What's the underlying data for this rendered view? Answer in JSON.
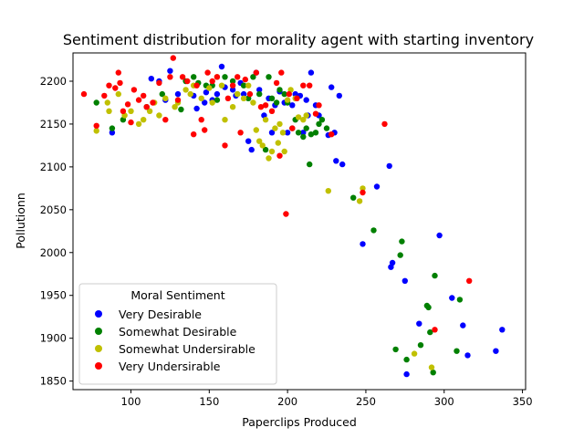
{
  "chart_data": {
    "type": "scatter",
    "title": "Sentiment distribution for morality agent with starting inventory",
    "xlabel": "Paperclips Produced",
    "ylabel": "Pollutionn",
    "xlim": [
      63,
      352
    ],
    "ylim": [
      1840,
      2233
    ],
    "xticks": [
      100,
      150,
      200,
      250,
      300,
      350
    ],
    "yticks": [
      1850,
      1900,
      1950,
      2000,
      2050,
      2100,
      2150,
      2200
    ],
    "grid": false,
    "legend": {
      "title": "Moral Sentiment",
      "placement": "lower-left"
    },
    "series": [
      {
        "name": "Very Desirable",
        "color": "#0000ff",
        "points": [
          [
            88,
            2140
          ],
          [
            113,
            2203
          ],
          [
            118,
            2200
          ],
          [
            122,
            2178
          ],
          [
            125,
            2212
          ],
          [
            130,
            2185
          ],
          [
            140,
            2183
          ],
          [
            142,
            2168
          ],
          [
            147,
            2175
          ],
          [
            148,
            2187
          ],
          [
            152,
            2178
          ],
          [
            155,
            2185
          ],
          [
            158,
            2217
          ],
          [
            160,
            2193
          ],
          [
            165,
            2190
          ],
          [
            167,
            2183
          ],
          [
            170,
            2198
          ],
          [
            172,
            2185
          ],
          [
            175,
            2130
          ],
          [
            177,
            2120
          ],
          [
            180,
            2210
          ],
          [
            182,
            2190
          ],
          [
            185,
            2160
          ],
          [
            188,
            2180
          ],
          [
            190,
            2140
          ],
          [
            192,
            2172
          ],
          [
            195,
            2188
          ],
          [
            198,
            2175
          ],
          [
            200,
            2140
          ],
          [
            203,
            2172
          ],
          [
            205,
            2185
          ],
          [
            208,
            2183
          ],
          [
            210,
            2140
          ],
          [
            212,
            2178
          ],
          [
            213,
            2160
          ],
          [
            215,
            2210
          ],
          [
            218,
            2172
          ],
          [
            220,
            2160
          ],
          [
            226,
            2137
          ],
          [
            228,
            2193
          ],
          [
            230,
            2140
          ],
          [
            231,
            2107
          ],
          [
            233,
            2183
          ],
          [
            235,
            2103
          ],
          [
            248,
            2010
          ],
          [
            257,
            2077
          ],
          [
            265,
            2101
          ],
          [
            266,
            1983
          ],
          [
            267,
            1988
          ],
          [
            275,
            1967
          ],
          [
            276,
            1858
          ],
          [
            284,
            1917
          ],
          [
            297,
            2020
          ],
          [
            305,
            1947
          ],
          [
            312,
            1915
          ],
          [
            315,
            1880
          ],
          [
            333,
            1885
          ],
          [
            337,
            1910
          ]
        ]
      },
      {
        "name": "Somewhat Desirable",
        "color": "#008000",
        "points": [
          [
            78,
            2175
          ],
          [
            88,
            2145
          ],
          [
            95,
            2155
          ],
          [
            110,
            2170
          ],
          [
            120,
            2185
          ],
          [
            132,
            2167
          ],
          [
            135,
            2200
          ],
          [
            140,
            2205
          ],
          [
            143,
            2198
          ],
          [
            148,
            2195
          ],
          [
            152,
            2195
          ],
          [
            155,
            2178
          ],
          [
            160,
            2205
          ],
          [
            165,
            2200
          ],
          [
            168,
            2185
          ],
          [
            172,
            2195
          ],
          [
            175,
            2180
          ],
          [
            178,
            2205
          ],
          [
            182,
            2185
          ],
          [
            186,
            2120
          ],
          [
            188,
            2205
          ],
          [
            190,
            2180
          ],
          [
            193,
            2175
          ],
          [
            195,
            2190
          ],
          [
            198,
            2185
          ],
          [
            200,
            2175
          ],
          [
            203,
            2145
          ],
          [
            205,
            2155
          ],
          [
            207,
            2140
          ],
          [
            210,
            2135
          ],
          [
            212,
            2145
          ],
          [
            214,
            2103
          ],
          [
            215,
            2138
          ],
          [
            218,
            2140
          ],
          [
            220,
            2150
          ],
          [
            222,
            2155
          ],
          [
            225,
            2145
          ],
          [
            242,
            2064
          ],
          [
            255,
            2026
          ],
          [
            269,
            1887
          ],
          [
            272,
            1997
          ],
          [
            273,
            2013
          ],
          [
            276,
            1875
          ],
          [
            285,
            1892
          ],
          [
            289,
            1938
          ],
          [
            290,
            1936
          ],
          [
            291,
            1907
          ],
          [
            293,
            1860
          ],
          [
            294,
            1973
          ],
          [
            308,
            1885
          ],
          [
            310,
            1945
          ]
        ]
      },
      {
        "name": "Somewhat Undersirable",
        "color": "#c0c000",
        "points": [
          [
            78,
            2142
          ],
          [
            85,
            2175
          ],
          [
            86,
            2165
          ],
          [
            92,
            2185
          ],
          [
            96,
            2160
          ],
          [
            100,
            2165
          ],
          [
            105,
            2150
          ],
          [
            108,
            2155
          ],
          [
            112,
            2165
          ],
          [
            115,
            2175
          ],
          [
            118,
            2160
          ],
          [
            122,
            2180
          ],
          [
            128,
            2170
          ],
          [
            130,
            2175
          ],
          [
            135,
            2190
          ],
          [
            138,
            2185
          ],
          [
            140,
            2195
          ],
          [
            145,
            2180
          ],
          [
            150,
            2192
          ],
          [
            152,
            2175
          ],
          [
            155,
            2205
          ],
          [
            158,
            2195
          ],
          [
            160,
            2155
          ],
          [
            165,
            2170
          ],
          [
            168,
            2185
          ],
          [
            172,
            2180
          ],
          [
            175,
            2195
          ],
          [
            178,
            2175
          ],
          [
            180,
            2143
          ],
          [
            182,
            2130
          ],
          [
            184,
            2125
          ],
          [
            186,
            2155
          ],
          [
            188,
            2110
          ],
          [
            190,
            2118
          ],
          [
            192,
            2145
          ],
          [
            194,
            2128
          ],
          [
            195,
            2150
          ],
          [
            197,
            2140
          ],
          [
            198,
            2118
          ],
          [
            200,
            2178
          ],
          [
            202,
            2190
          ],
          [
            205,
            2180
          ],
          [
            207,
            2158
          ],
          [
            210,
            2155
          ],
          [
            212,
            2160
          ],
          [
            226,
            2072
          ],
          [
            246,
            2060
          ],
          [
            248,
            2075
          ],
          [
            281,
            1882
          ],
          [
            292,
            1866
          ]
        ]
      },
      {
        "name": "Very Undersirable",
        "color": "#ff0000",
        "points": [
          [
            70,
            2185
          ],
          [
            78,
            2148
          ],
          [
            83,
            2183
          ],
          [
            86,
            2195
          ],
          [
            90,
            2192
          ],
          [
            92,
            2210
          ],
          [
            93,
            2198
          ],
          [
            95,
            2165
          ],
          [
            98,
            2173
          ],
          [
            100,
            2152
          ],
          [
            102,
            2190
          ],
          [
            105,
            2178
          ],
          [
            108,
            2183
          ],
          [
            110,
            2170
          ],
          [
            114,
            2175
          ],
          [
            118,
            2198
          ],
          [
            122,
            2155
          ],
          [
            125,
            2205
          ],
          [
            127,
            2227
          ],
          [
            130,
            2178
          ],
          [
            133,
            2205
          ],
          [
            136,
            2200
          ],
          [
            140,
            2138
          ],
          [
            142,
            2195
          ],
          [
            145,
            2155
          ],
          [
            147,
            2143
          ],
          [
            149,
            2210
          ],
          [
            152,
            2200
          ],
          [
            155,
            2205
          ],
          [
            160,
            2125
          ],
          [
            162,
            2180
          ],
          [
            165,
            2195
          ],
          [
            168,
            2205
          ],
          [
            170,
            2140
          ],
          [
            173,
            2202
          ],
          [
            176,
            2185
          ],
          [
            180,
            2210
          ],
          [
            183,
            2170
          ],
          [
            186,
            2172
          ],
          [
            190,
            2165
          ],
          [
            193,
            2198
          ],
          [
            195,
            2113
          ],
          [
            196,
            2210
          ],
          [
            199,
            2045
          ],
          [
            201,
            2185
          ],
          [
            203,
            2145
          ],
          [
            206,
            2180
          ],
          [
            210,
            2195
          ],
          [
            214,
            2195
          ],
          [
            218,
            2162
          ],
          [
            220,
            2172
          ],
          [
            228,
            2138
          ],
          [
            248,
            2070
          ],
          [
            262,
            2150
          ],
          [
            294,
            1910
          ],
          [
            316,
            1967
          ]
        ]
      }
    ]
  }
}
